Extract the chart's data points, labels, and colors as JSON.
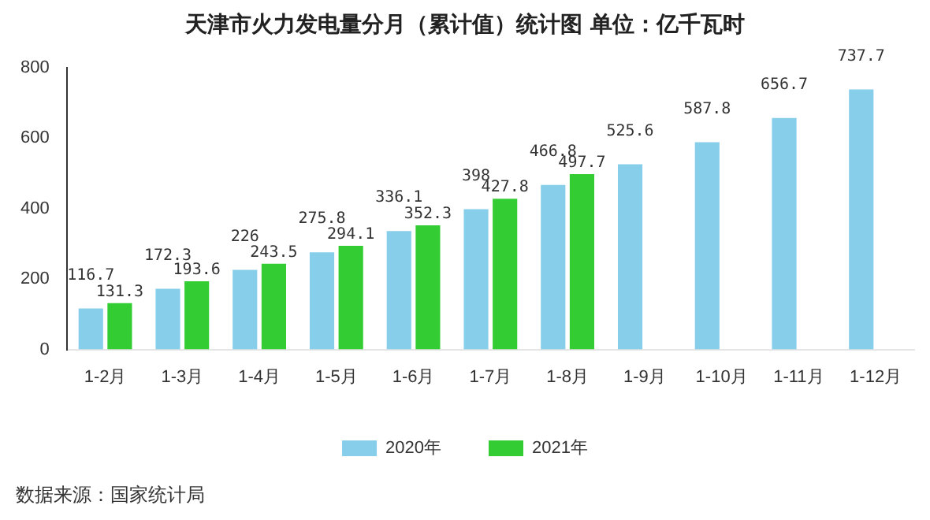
{
  "chart_data": {
    "type": "bar",
    "title": "天津市火力发电量分月（累计值）统计图 单位：亿千瓦时",
    "categories": [
      "1-2月",
      "1-3月",
      "1-4月",
      "1-5月",
      "1-6月",
      "1-7月",
      "1-8月",
      "1-9月",
      "1-10月",
      "1-11月",
      "1-12月"
    ],
    "series": [
      {
        "name": "2020年",
        "color": "#87ceeb",
        "values": [
          116.7,
          172.3,
          226,
          275.8,
          336.1,
          398,
          466.8,
          525.6,
          587.8,
          656.7,
          737.7
        ]
      },
      {
        "name": "2021年",
        "color": "#33cc33",
        "values": [
          131.3,
          193.6,
          243.5,
          294.1,
          352.3,
          427.8,
          497.7,
          null,
          null,
          null,
          null
        ]
      }
    ],
    "ylim": [
      0,
      800
    ],
    "yticks": [
      0,
      200,
      400,
      600,
      800
    ],
    "grid": false,
    "legend": "bottom",
    "data_labels": true,
    "annotations": [
      "数据来源：国家统计局"
    ]
  }
}
